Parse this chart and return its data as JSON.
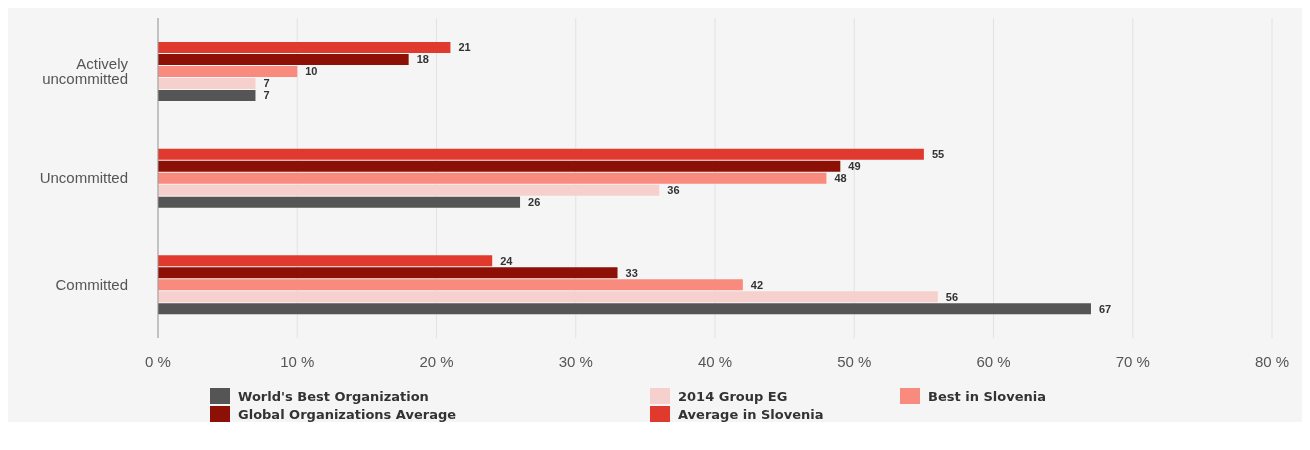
{
  "chart_data": {
    "type": "bar",
    "orientation": "horizontal",
    "categories": [
      "Actively uncommitted",
      "Uncommitted",
      "Committed"
    ],
    "series": [
      {
        "name": "Average in Slovenia",
        "color": "#e0392e",
        "values": [
          21,
          55,
          24
        ]
      },
      {
        "name": "Global Organizations Average",
        "color": "#8c1006",
        "values": [
          18,
          49,
          33
        ]
      },
      {
        "name": "Best in Slovenia",
        "color": "#f98a7e",
        "values": [
          10,
          48,
          42
        ]
      },
      {
        "name": "2014 Group EG",
        "color": "#f5d0cc",
        "values": [
          7,
          36,
          56
        ]
      },
      {
        "name": "World's Best Organization",
        "color": "#555555",
        "values": [
          7,
          26,
          67
        ]
      }
    ],
    "xlim": [
      0,
      80
    ],
    "xticks": [
      {
        "value": 0,
        "label": "0 %"
      },
      {
        "value": 10,
        "label": "10 %"
      },
      {
        "value": 20,
        "label": "20 %"
      },
      {
        "value": 30,
        "label": "30 %"
      },
      {
        "value": 40,
        "label": "40 %"
      },
      {
        "value": 50,
        "label": "50 %"
      },
      {
        "value": 60,
        "label": "60 %"
      },
      {
        "value": 70,
        "label": "70 %"
      },
      {
        "value": 80,
        "label": "80 %"
      }
    ],
    "grid": "x",
    "data_labels": true,
    "legend": "bottom"
  }
}
